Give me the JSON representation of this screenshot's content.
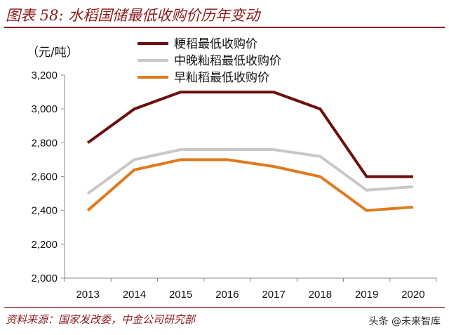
{
  "title": "图表 58: 水稻国储最低收购价历年变动",
  "unit_label": "（元/吨）",
  "source": "资料来源：国家发改委，中金公司研究部",
  "watermark": "头条 @未来智库",
  "chart_data": {
    "type": "line",
    "x": [
      "2013",
      "2014",
      "2015",
      "2016",
      "2017",
      "2018",
      "2019",
      "2020"
    ],
    "ylim": [
      2000,
      3200
    ],
    "yticks": [
      2000,
      2200,
      2400,
      2600,
      2800,
      3000,
      3200
    ],
    "ytick_labels": [
      "2,000",
      "2,200",
      "2,400",
      "2,600",
      "2,800",
      "3,000",
      "3,200"
    ],
    "grid": false,
    "legend_position": "top-center",
    "series": [
      {
        "name": "粳稻最低收购价",
        "color": "#6b0f0f",
        "values": [
          2800,
          3000,
          3100,
          3100,
          3100,
          3000,
          2600,
          2600
        ]
      },
      {
        "name": "中晚籼稻最低收购价",
        "color": "#c8c8c8",
        "values": [
          2500,
          2700,
          2760,
          2760,
          2760,
          2720,
          2520,
          2540
        ]
      },
      {
        "name": "早籼稻最低收购价",
        "color": "#e07a1f",
        "values": [
          2400,
          2640,
          2700,
          2700,
          2660,
          2600,
          2400,
          2420
        ]
      }
    ]
  }
}
